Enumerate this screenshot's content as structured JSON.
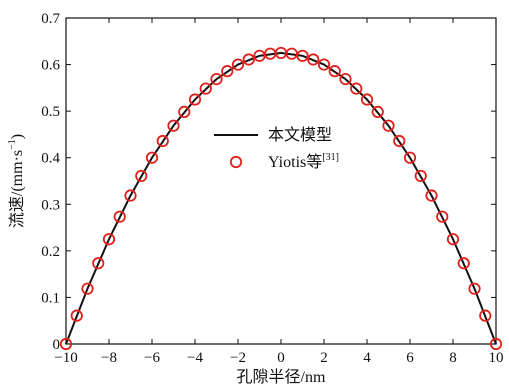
{
  "chart_data": {
    "type": "line",
    "xlabel": "孔隙半径/nm",
    "ylabel": {
      "main": "流速/(mm·s",
      "sup": "−1",
      "tail": ")"
    },
    "xlim": [
      -10,
      10
    ],
    "ylim": [
      0,
      0.7
    ],
    "xticks": [
      -10,
      -8,
      -6,
      -4,
      -2,
      0,
      2,
      4,
      6,
      8,
      10
    ],
    "xtick_labels": [
      "−10",
      "−8",
      "−6",
      "−4",
      "−2",
      "0",
      "2",
      "4",
      "6",
      "8",
      "10"
    ],
    "yticks": [
      0,
      0.1,
      0.2,
      0.3,
      0.4,
      0.5,
      0.6,
      0.7
    ],
    "ytick_labels": [
      "0",
      "0.1",
      "0.2",
      "0.3",
      "0.4",
      "0.5",
      "0.6",
      "0.7"
    ],
    "grid": false,
    "legend_position": "center",
    "series": [
      {
        "name": "本文模型",
        "style": "line",
        "color": "#111111",
        "x": [
          -10,
          -9,
          -8,
          -7,
          -6,
          -5,
          -4,
          -3,
          -2,
          -1,
          0,
          1,
          2,
          3,
          4,
          5,
          6,
          7,
          8,
          9,
          10
        ],
        "y": [
          0,
          0.1188,
          0.225,
          0.3188,
          0.4,
          0.4688,
          0.525,
          0.5688,
          0.6,
          0.6188,
          0.625,
          0.6188,
          0.6,
          0.5688,
          0.525,
          0.4688,
          0.4,
          0.3188,
          0.225,
          0.1188,
          0
        ]
      },
      {
        "name": "Yiotis等",
        "name_sup": "[31]",
        "style": "marker",
        "color": "#e0201b",
        "x": [
          -10,
          -9.5,
          -9,
          -8.5,
          -8,
          -7.5,
          -7,
          -6.5,
          -6,
          -5.5,
          -5,
          -4.5,
          -4,
          -3.5,
          -3,
          -2.5,
          -2,
          -1.5,
          -1,
          -0.5,
          0,
          0.5,
          1,
          1.5,
          2,
          2.5,
          3,
          3.5,
          4,
          4.5,
          5,
          5.5,
          6,
          6.5,
          7,
          7.5,
          8,
          8.5,
          9,
          9.5,
          10
        ],
        "y": [
          0,
          0.0609,
          0.1188,
          0.1734,
          0.225,
          0.2734,
          0.3188,
          0.3609,
          0.4,
          0.4359,
          0.4688,
          0.4984,
          0.525,
          0.5484,
          0.5688,
          0.5859,
          0.6,
          0.6109,
          0.6188,
          0.6234,
          0.625,
          0.6234,
          0.6188,
          0.6109,
          0.6,
          0.5859,
          0.5688,
          0.5484,
          0.525,
          0.4984,
          0.4688,
          0.4359,
          0.4,
          0.3609,
          0.3188,
          0.2734,
          0.225,
          0.1734,
          0.1188,
          0.0609,
          0
        ]
      }
    ]
  }
}
